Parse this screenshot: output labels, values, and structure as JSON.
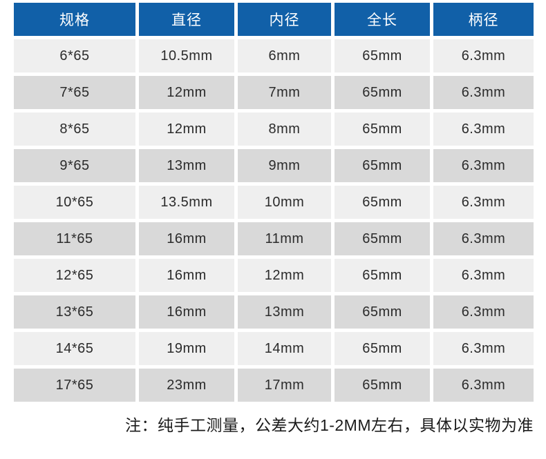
{
  "colors": {
    "header_bg": "#1160a8",
    "header_text": "#ffffff",
    "row_light": "#efefef",
    "row_dark": "#d9d9d9",
    "cell_text": "#2b2b2b",
    "page_bg": "#ffffff"
  },
  "table": {
    "columns": [
      "规格",
      "直径",
      "内径",
      "全长",
      "柄径"
    ],
    "rows": [
      [
        "6*65",
        "10.5mm",
        "6mm",
        "65mm",
        "6.3mm"
      ],
      [
        "7*65",
        "12mm",
        "7mm",
        "65mm",
        "6.3mm"
      ],
      [
        "8*65",
        "12mm",
        "8mm",
        "65mm",
        "6.3mm"
      ],
      [
        "9*65",
        "13mm",
        "9mm",
        "65mm",
        "6.3mm"
      ],
      [
        "10*65",
        "13.5mm",
        "10mm",
        "65mm",
        "6.3mm"
      ],
      [
        "11*65",
        "16mm",
        "11mm",
        "65mm",
        "6.3mm"
      ],
      [
        "12*65",
        "16mm",
        "12mm",
        "65mm",
        "6.3mm"
      ],
      [
        "13*65",
        "16mm",
        "13mm",
        "65mm",
        "6.3mm"
      ],
      [
        "14*65",
        "19mm",
        "14mm",
        "65mm",
        "6.3mm"
      ],
      [
        "17*65",
        "23mm",
        "17mm",
        "65mm",
        "6.3mm"
      ]
    ]
  },
  "note": {
    "text": "注：纯手工测量，公差大约1-2MM左右，具体以实物为准"
  }
}
